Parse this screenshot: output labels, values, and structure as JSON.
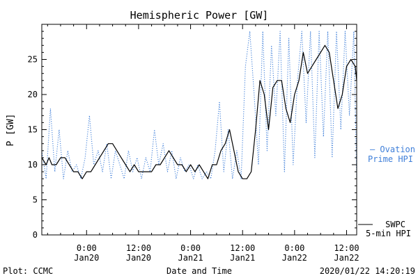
{
  "chart_data": {
    "type": "line",
    "title": "Hemispheric Power [GW]",
    "xlabel": "Date and Time",
    "ylabel": "P [GW]",
    "ylim": [
      0,
      30
    ],
    "xlim": [
      "2020-01-19T13:40",
      "2020-01-22T14:20"
    ],
    "yticks": [
      0,
      5,
      10,
      15,
      20,
      25
    ],
    "xticks": [
      {
        "time": "2020-01-20T00:00",
        "label1": "0:00",
        "label2": "Jan20"
      },
      {
        "time": "2020-01-20T12:00",
        "label1": "12:00",
        "label2": "Jan20"
      },
      {
        "time": "2020-01-21T00:00",
        "label1": "0:00",
        "label2": "Jan21"
      },
      {
        "time": "2020-01-21T12:00",
        "label1": "12:00",
        "label2": "Jan21"
      },
      {
        "time": "2020-01-22T00:00",
        "label1": "0:00",
        "label2": "Jan22"
      },
      {
        "time": "2020-01-22T12:00",
        "label1": "12:00",
        "label2": "Jan22"
      }
    ],
    "grid": false,
    "series": [
      {
        "name": "SWPC 5-min HPI",
        "color": "#000000",
        "style": "solid",
        "points": [
          [
            "2020-01-19T13:40",
            11
          ],
          [
            "2020-01-19T14:40",
            10
          ],
          [
            "2020-01-19T15:20",
            11
          ],
          [
            "2020-01-19T16:00",
            10
          ],
          [
            "2020-01-19T17:00",
            10
          ],
          [
            "2020-01-19T18:00",
            11
          ],
          [
            "2020-01-19T19:00",
            11
          ],
          [
            "2020-01-19T20:00",
            10
          ],
          [
            "2020-01-19T21:00",
            9
          ],
          [
            "2020-01-19T22:00",
            9
          ],
          [
            "2020-01-19T23:00",
            8
          ],
          [
            "2020-01-20T00:00",
            9
          ],
          [
            "2020-01-20T01:00",
            9
          ],
          [
            "2020-01-20T02:00",
            10
          ],
          [
            "2020-01-20T03:00",
            11
          ],
          [
            "2020-01-20T04:00",
            12
          ],
          [
            "2020-01-20T05:00",
            13
          ],
          [
            "2020-01-20T06:00",
            13
          ],
          [
            "2020-01-20T07:00",
            12
          ],
          [
            "2020-01-20T08:00",
            11
          ],
          [
            "2020-01-20T09:00",
            10
          ],
          [
            "2020-01-20T10:00",
            9
          ],
          [
            "2020-01-20T11:00",
            10
          ],
          [
            "2020-01-20T12:00",
            9
          ],
          [
            "2020-01-20T13:00",
            9
          ],
          [
            "2020-01-20T14:00",
            9
          ],
          [
            "2020-01-20T15:00",
            9
          ],
          [
            "2020-01-20T16:00",
            10
          ],
          [
            "2020-01-20T17:00",
            10
          ],
          [
            "2020-01-20T18:00",
            11
          ],
          [
            "2020-01-20T19:00",
            12
          ],
          [
            "2020-01-20T20:00",
            11
          ],
          [
            "2020-01-20T21:00",
            10
          ],
          [
            "2020-01-20T22:00",
            10
          ],
          [
            "2020-01-20T23:00",
            9
          ],
          [
            "2020-01-21T00:00",
            10
          ],
          [
            "2020-01-21T01:00",
            9
          ],
          [
            "2020-01-21T02:00",
            10
          ],
          [
            "2020-01-21T03:00",
            9
          ],
          [
            "2020-01-21T04:00",
            8
          ],
          [
            "2020-01-21T05:00",
            10
          ],
          [
            "2020-01-21T06:00",
            10
          ],
          [
            "2020-01-21T07:00",
            12
          ],
          [
            "2020-01-21T08:00",
            13
          ],
          [
            "2020-01-21T09:00",
            15
          ],
          [
            "2020-01-21T10:00",
            12
          ],
          [
            "2020-01-21T11:00",
            9
          ],
          [
            "2020-01-21T12:00",
            8
          ],
          [
            "2020-01-21T13:00",
            8
          ],
          [
            "2020-01-21T14:00",
            9
          ],
          [
            "2020-01-21T15:00",
            15
          ],
          [
            "2020-01-21T16:00",
            22
          ],
          [
            "2020-01-21T17:00",
            20
          ],
          [
            "2020-01-21T18:00",
            15
          ],
          [
            "2020-01-21T19:00",
            21
          ],
          [
            "2020-01-21T20:00",
            22
          ],
          [
            "2020-01-21T21:00",
            22
          ],
          [
            "2020-01-21T22:00",
            18
          ],
          [
            "2020-01-21T23:00",
            16
          ],
          [
            "2020-01-22T00:00",
            20
          ],
          [
            "2020-01-22T01:00",
            22
          ],
          [
            "2020-01-22T02:00",
            26
          ],
          [
            "2020-01-22T03:00",
            23
          ],
          [
            "2020-01-22T04:00",
            24
          ],
          [
            "2020-01-22T05:00",
            25
          ],
          [
            "2020-01-22T06:00",
            26
          ],
          [
            "2020-01-22T07:00",
            27
          ],
          [
            "2020-01-22T08:00",
            26
          ],
          [
            "2020-01-22T09:00",
            22
          ],
          [
            "2020-01-22T10:00",
            18
          ],
          [
            "2020-01-22T11:00",
            20
          ],
          [
            "2020-01-22T12:00",
            24
          ],
          [
            "2020-01-22T13:00",
            25
          ],
          [
            "2020-01-22T14:00",
            24
          ],
          [
            "2020-01-22T14:20",
            22
          ]
        ]
      },
      {
        "name": "Ovation Prime HPI",
        "color": "#3f7fd9",
        "style": "dotted",
        "points": [
          [
            "2020-01-19T13:40",
            12
          ],
          [
            "2020-01-19T14:40",
            8
          ],
          [
            "2020-01-19T15:40",
            18
          ],
          [
            "2020-01-19T16:40",
            9
          ],
          [
            "2020-01-19T17:40",
            15
          ],
          [
            "2020-01-19T18:40",
            8
          ],
          [
            "2020-01-19T19:40",
            12
          ],
          [
            "2020-01-19T20:40",
            9
          ],
          [
            "2020-01-19T21:40",
            10
          ],
          [
            "2020-01-19T22:40",
            8
          ],
          [
            "2020-01-19T23:40",
            11
          ],
          [
            "2020-01-20T00:40",
            17
          ],
          [
            "2020-01-20T01:40",
            10
          ],
          [
            "2020-01-20T02:40",
            12
          ],
          [
            "2020-01-20T03:40",
            9
          ],
          [
            "2020-01-20T04:40",
            13
          ],
          [
            "2020-01-20T05:40",
            8
          ],
          [
            "2020-01-20T06:40",
            12
          ],
          [
            "2020-01-20T07:40",
            10
          ],
          [
            "2020-01-20T08:40",
            8
          ],
          [
            "2020-01-20T09:40",
            12
          ],
          [
            "2020-01-20T10:40",
            9
          ],
          [
            "2020-01-20T11:40",
            11
          ],
          [
            "2020-01-20T12:40",
            8
          ],
          [
            "2020-01-20T13:40",
            11
          ],
          [
            "2020-01-20T14:40",
            9
          ],
          [
            "2020-01-20T15:40",
            15
          ],
          [
            "2020-01-20T16:40",
            10
          ],
          [
            "2020-01-20T17:40",
            13
          ],
          [
            "2020-01-20T18:40",
            9
          ],
          [
            "2020-01-20T19:40",
            12
          ],
          [
            "2020-01-20T20:40",
            8
          ],
          [
            "2020-01-20T21:40",
            11
          ],
          [
            "2020-01-20T22:40",
            9
          ],
          [
            "2020-01-20T23:40",
            10
          ],
          [
            "2020-01-21T00:40",
            8
          ],
          [
            "2020-01-21T01:40",
            10
          ],
          [
            "2020-01-21T02:40",
            8
          ],
          [
            "2020-01-21T03:40",
            9
          ],
          [
            "2020-01-21T04:40",
            8
          ],
          [
            "2020-01-21T05:40",
            12
          ],
          [
            "2020-01-21T06:40",
            19
          ],
          [
            "2020-01-21T07:40",
            9
          ],
          [
            "2020-01-21T08:40",
            15
          ],
          [
            "2020-01-21T09:40",
            8
          ],
          [
            "2020-01-21T10:40",
            12
          ],
          [
            "2020-01-21T11:40",
            8
          ],
          [
            "2020-01-21T12:40",
            24
          ],
          [
            "2020-01-21T13:40",
            29
          ],
          [
            "2020-01-21T14:40",
            20
          ],
          [
            "2020-01-21T15:40",
            10
          ],
          [
            "2020-01-21T16:40",
            29
          ],
          [
            "2020-01-21T17:40",
            12
          ],
          [
            "2020-01-21T18:40",
            27
          ],
          [
            "2020-01-21T19:40",
            17
          ],
          [
            "2020-01-21T20:40",
            29
          ],
          [
            "2020-01-21T21:40",
            9
          ],
          [
            "2020-01-21T22:40",
            28
          ],
          [
            "2020-01-21T23:40",
            10
          ],
          [
            "2020-01-22T00:40",
            22
          ],
          [
            "2020-01-22T01:40",
            29
          ],
          [
            "2020-01-22T02:40",
            16
          ],
          [
            "2020-01-22T03:40",
            29
          ],
          [
            "2020-01-22T04:40",
            11
          ],
          [
            "2020-01-22T05:40",
            29
          ],
          [
            "2020-01-22T06:40",
            14
          ],
          [
            "2020-01-22T07:40",
            29
          ],
          [
            "2020-01-22T08:40",
            11
          ],
          [
            "2020-01-22T09:40",
            29
          ],
          [
            "2020-01-22T10:40",
            15
          ],
          [
            "2020-01-22T11:40",
            29
          ],
          [
            "2020-01-22T12:40",
            17
          ],
          [
            "2020-01-22T13:40",
            29
          ],
          [
            "2020-01-22T14:20",
            8
          ]
        ]
      }
    ],
    "legend": [
      {
        "label_line1": "— Ovation",
        "label_line2": "Prime HPI",
        "color": "#3f7fd9"
      },
      {
        "label_line1": "SWPC",
        "label_line2": "5-min HPI",
        "color": "#000000"
      }
    ]
  },
  "footer": {
    "left": "Plot: CCMC",
    "right": "2020/01/22 14:20:19"
  }
}
